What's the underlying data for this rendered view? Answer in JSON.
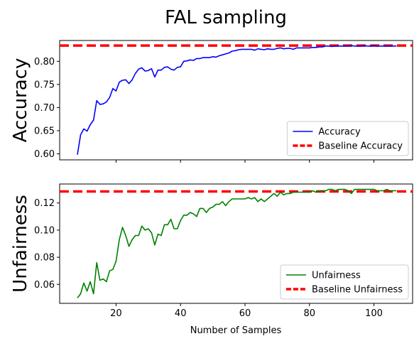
{
  "figure": {
    "title": "FAL sampling",
    "xlabel": "Number of Samples"
  },
  "chart_data": [
    {
      "type": "line",
      "ylabel": "Accuracy",
      "xlim": [
        2.5,
        112
      ],
      "ylim": [
        0.587,
        0.845
      ],
      "xticks": [
        20,
        40,
        60,
        80,
        100
      ],
      "xtick_labels_shown": false,
      "yticks": [
        0.6,
        0.65,
        0.7,
        0.75,
        0.8
      ],
      "ytick_labels": [
        "0.60",
        "0.65",
        "0.70",
        "0.75",
        "0.80"
      ],
      "grid": false,
      "legend_position": "lower-right",
      "series": [
        {
          "name": "Accuracy",
          "color": "#0000ff",
          "style": "solid",
          "x": [
            8,
            9,
            10,
            11,
            12,
            13,
            14,
            15,
            16,
            17,
            18,
            19,
            20,
            21,
            22,
            23,
            24,
            25,
            26,
            27,
            28,
            29,
            30,
            31,
            32,
            33,
            34,
            35,
            36,
            37,
            38,
            39,
            40,
            41,
            42,
            43,
            44,
            45,
            46,
            47,
            48,
            49,
            50,
            51,
            52,
            53,
            54,
            55,
            56,
            57,
            58,
            59,
            60,
            61,
            62,
            63,
            64,
            65,
            66,
            67,
            68,
            69,
            70,
            71,
            72,
            73,
            74,
            75,
            76,
            77,
            78,
            79,
            80,
            81,
            82,
            83,
            84,
            85,
            86,
            87,
            88,
            89,
            90,
            91,
            92,
            93,
            94,
            95,
            96,
            97,
            98,
            99,
            100,
            101,
            102,
            103,
            104,
            105,
            106,
            107
          ],
          "y": [
            0.598,
            0.641,
            0.654,
            0.649,
            0.663,
            0.673,
            0.715,
            0.707,
            0.708,
            0.712,
            0.722,
            0.741,
            0.736,
            0.755,
            0.759,
            0.76,
            0.752,
            0.76,
            0.774,
            0.783,
            0.786,
            0.779,
            0.78,
            0.784,
            0.766,
            0.781,
            0.781,
            0.787,
            0.788,
            0.783,
            0.781,
            0.787,
            0.788,
            0.8,
            0.801,
            0.803,
            0.802,
            0.806,
            0.806,
            0.808,
            0.808,
            0.808,
            0.81,
            0.809,
            0.812,
            0.814,
            0.816,
            0.818,
            0.822,
            0.823,
            0.825,
            0.826,
            0.826,
            0.826,
            0.826,
            0.824,
            0.827,
            0.826,
            0.825,
            0.827,
            0.826,
            0.826,
            0.828,
            0.829,
            0.827,
            0.828,
            0.828,
            0.826,
            0.829,
            0.829,
            0.829,
            0.829,
            0.829,
            0.83,
            0.83,
            0.831,
            0.831,
            0.833,
            0.833,
            0.832,
            0.833,
            0.833,
            0.833,
            0.833,
            0.833,
            0.834,
            0.833,
            0.833,
            0.833,
            0.834,
            0.833,
            0.833,
            0.834,
            0.833,
            0.833,
            0.833,
            0.833,
            0.833,
            0.833,
            0.833
          ]
        }
      ],
      "baselines": [
        {
          "name": "Baseline Accuracy",
          "value": 0.834,
          "color": "#ff0000",
          "style": "dashed"
        }
      ]
    },
    {
      "type": "line",
      "ylabel": "Unfairness",
      "xlim": [
        2.5,
        112
      ],
      "ylim": [
        0.046,
        0.134
      ],
      "xticks": [
        20,
        40,
        60,
        80,
        100
      ],
      "xtick_labels": [
        "20",
        "40",
        "60",
        "80",
        "100"
      ],
      "yticks": [
        0.06,
        0.08,
        0.1,
        0.12
      ],
      "ytick_labels": [
        "0.06",
        "0.08",
        "0.10",
        "0.12"
      ],
      "grid": false,
      "legend_position": "lower-right",
      "series": [
        {
          "name": "Unfairness",
          "color": "#008000",
          "style": "solid",
          "x": [
            8,
            9,
            10,
            11,
            12,
            13,
            14,
            15,
            16,
            17,
            18,
            19,
            20,
            21,
            22,
            23,
            24,
            25,
            26,
            27,
            28,
            29,
            30,
            31,
            32,
            33,
            34,
            35,
            36,
            37,
            38,
            39,
            40,
            41,
            42,
            43,
            44,
            45,
            46,
            47,
            48,
            49,
            50,
            51,
            52,
            53,
            54,
            55,
            56,
            57,
            58,
            59,
            60,
            61,
            62,
            63,
            64,
            65,
            66,
            67,
            68,
            69,
            70,
            71,
            72,
            73,
            74,
            75,
            76,
            77,
            78,
            79,
            80,
            81,
            82,
            83,
            84,
            85,
            86,
            87,
            88,
            89,
            90,
            91,
            92,
            93,
            94,
            95,
            96,
            97,
            98,
            99,
            100,
            101,
            102,
            103,
            104,
            105,
            106,
            107
          ],
          "y": [
            0.05,
            0.053,
            0.061,
            0.055,
            0.062,
            0.053,
            0.076,
            0.063,
            0.064,
            0.062,
            0.07,
            0.071,
            0.077,
            0.093,
            0.102,
            0.096,
            0.088,
            0.093,
            0.096,
            0.096,
            0.103,
            0.1,
            0.101,
            0.098,
            0.089,
            0.097,
            0.096,
            0.104,
            0.104,
            0.108,
            0.101,
            0.101,
            0.107,
            0.111,
            0.111,
            0.113,
            0.112,
            0.11,
            0.116,
            0.116,
            0.113,
            0.116,
            0.117,
            0.119,
            0.119,
            0.121,
            0.118,
            0.121,
            0.123,
            0.123,
            0.123,
            0.123,
            0.123,
            0.124,
            0.123,
            0.124,
            0.121,
            0.123,
            0.121,
            0.123,
            0.125,
            0.127,
            0.125,
            0.128,
            0.126,
            0.127,
            0.127,
            0.128,
            0.128,
            0.128,
            0.128,
            0.128,
            0.128,
            0.129,
            0.128,
            0.129,
            0.129,
            0.129,
            0.13,
            0.13,
            0.129,
            0.13,
            0.13,
            0.13,
            0.129,
            0.127,
            0.13,
            0.13,
            0.13,
            0.13,
            0.13,
            0.13,
            0.13,
            0.129,
            0.129,
            0.129,
            0.13,
            0.129,
            0.129,
            0.129
          ],
          "y_note": "series values"
        }
      ],
      "baselines": [
        {
          "name": "Baseline Unfairness",
          "value": 0.1285,
          "color": "#ff0000",
          "style": "dashed"
        }
      ]
    }
  ]
}
